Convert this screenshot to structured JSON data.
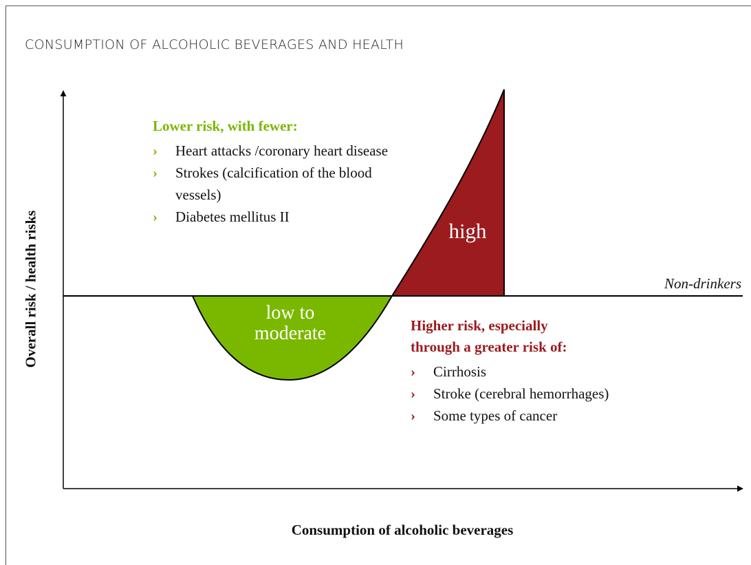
{
  "title": "CONSUMPTION OF ALCOHOLIC BEVERAGES AND HEALTH",
  "y_axis_label": "Overall risk / health risks",
  "x_axis_label": "Consumption of alcoholic beverages",
  "baseline_label": "Non-drinkers",
  "regions": {
    "low": [
      "low to",
      "moderate"
    ],
    "high": "high"
  },
  "lower_risk": {
    "heading": "Lower risk, with fewer:",
    "items": [
      "Heart attacks /coronary heart disease",
      "Strokes (calcification of the blood vessels)",
      "Diabetes mellitus II"
    ]
  },
  "higher_risk": {
    "heading": [
      "Higher risk, especially",
      "through a greater risk of:"
    ],
    "items": [
      "Cirrhosis",
      "Stroke (cerebral hemorrhages)",
      "Some types of cancer"
    ]
  }
}
